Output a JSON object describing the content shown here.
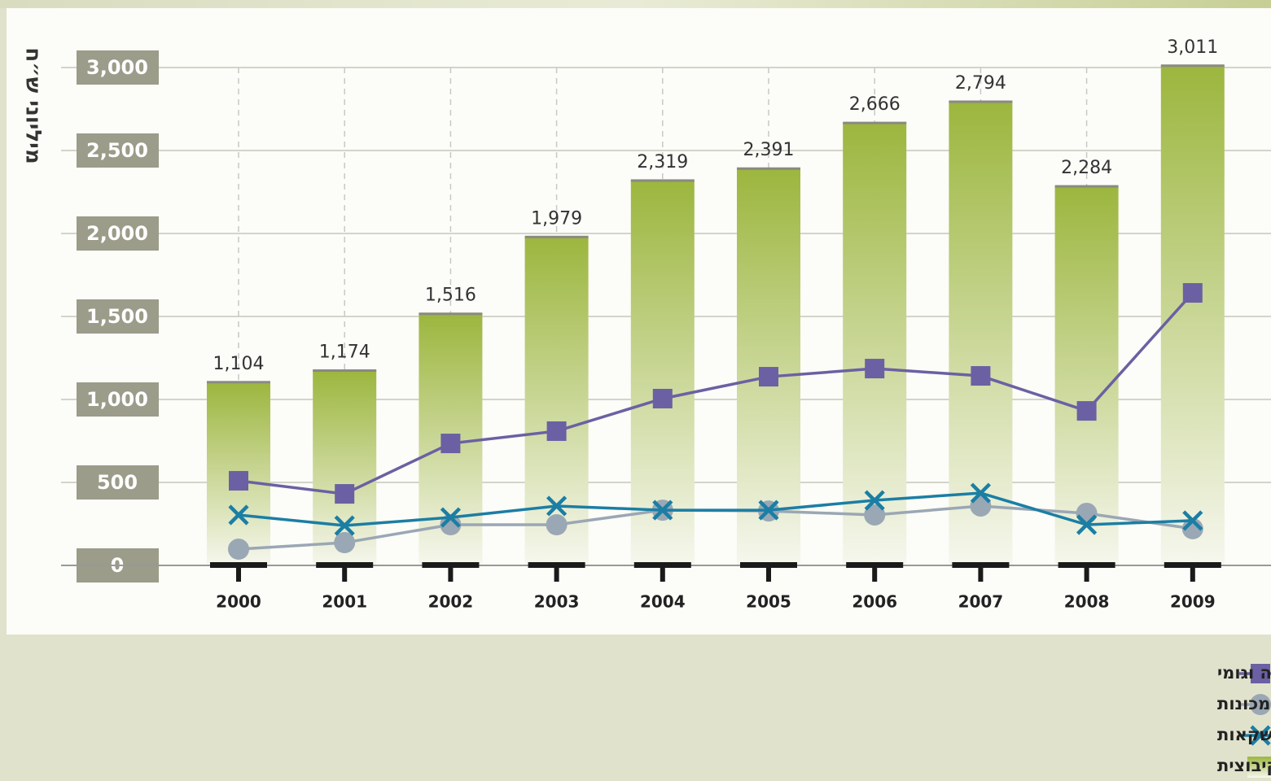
{
  "chart_data": {
    "type": "bar",
    "y_label": "מיליוני ש״ח",
    "categories": [
      "2000",
      "2001",
      "2002",
      "2003",
      "2004",
      "2005",
      "2006",
      "2007",
      "2008",
      "2009"
    ],
    "ylim": [
      0,
      3000
    ],
    "yticks": [
      0,
      500,
      {
        "value": 1000,
        "label": "1,000"
      },
      {
        "value": 1500,
        "label": "1,500"
      },
      {
        "value": 2000,
        "label": "2,000"
      },
      {
        "value": 2500,
        "label": "2,500"
      },
      {
        "value": 3000,
        "label": "3,000"
      }
    ],
    "grid": true,
    "legend": "bottom-right",
    "series": [
      {
        "name": "פלסטיקה וגומי",
        "type": "line",
        "marker": "square",
        "color": "#6b60a3",
        "values": [
          510,
          431,
          735,
          809,
          1005,
          1137,
          1186,
          1142,
          931,
          1642
        ]
      },
      {
        "name": "מתכת ומכונות",
        "type": "line",
        "marker": "circle",
        "color": "#9aa7b4",
        "values": [
          98,
          137,
          245,
          245,
          333,
          328,
          304,
          358,
          314,
          221
        ]
      },
      {
        "name": "מזון ומשקאות",
        "type": "line",
        "marker": "x",
        "color": "#1b7ea4",
        "values": [
          304,
          240,
          289,
          358,
          333,
          333,
          392,
          436,
          245,
          270
        ]
      },
      {
        "name": "סה״כ התעשייה הקיבוצית",
        "type": "bar",
        "color": "#9cb63e",
        "values": [
          1104,
          1174,
          1516,
          1979,
          2319,
          2391,
          2666,
          2794,
          2284,
          3011
        ],
        "value_labels": [
          "1,104",
          "1,174",
          "1,516",
          "1,979",
          "2,319",
          "2,391",
          "2,666",
          "2,794",
          "2,284",
          "3,011"
        ]
      }
    ]
  }
}
